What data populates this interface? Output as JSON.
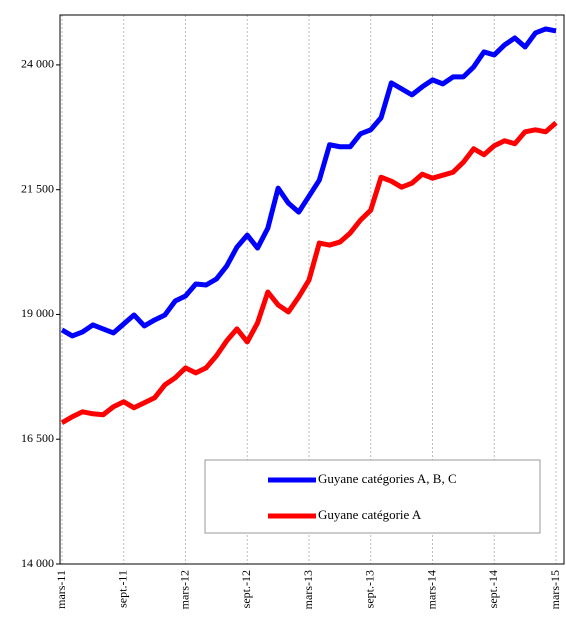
{
  "chart_data": {
    "type": "line",
    "categories": [
      "mars-11",
      null,
      null,
      null,
      null,
      null,
      "sept.-11",
      null,
      null,
      null,
      null,
      null,
      "mars-12",
      null,
      null,
      null,
      null,
      null,
      "sept.-12",
      null,
      null,
      null,
      null,
      null,
      "mars-13",
      null,
      null,
      null,
      null,
      null,
      "sept.-13",
      null,
      null,
      null,
      null,
      null,
      "mars-14",
      null,
      null,
      null,
      null,
      null,
      "sept.-14",
      null,
      null,
      null,
      null,
      null,
      "mars-15"
    ],
    "series": [
      {
        "name": "Guyane catégories A, B, C",
        "color": "#0000ff",
        "values": [
          18690,
          18570,
          18650,
          18790,
          18710,
          18630,
          18810,
          18990,
          18770,
          18890,
          18990,
          19270,
          19370,
          19610,
          19590,
          19710,
          19970,
          20350,
          20590,
          20330,
          20730,
          21530,
          21230,
          21050,
          21370,
          21690,
          22400,
          22360,
          22360,
          22620,
          22700,
          22940,
          23640,
          23520,
          23400,
          23560,
          23700,
          23620,
          23760,
          23760,
          23960,
          24260,
          24200,
          24400,
          24540,
          24360,
          24640,
          24720,
          24680
        ]
      },
      {
        "name": "Guyane catégorie A",
        "color": "#ff0000",
        "values": [
          16830,
          16950,
          17050,
          17010,
          16990,
          17150,
          17250,
          17130,
          17230,
          17330,
          17590,
          17730,
          17930,
          17830,
          17930,
          18170,
          18470,
          18710,
          18450,
          18830,
          19450,
          19190,
          19050,
          19350,
          19690,
          20430,
          20390,
          20450,
          20630,
          20890,
          21090,
          21750,
          21670,
          21550,
          21630,
          21810,
          21730,
          21790,
          21850,
          22050,
          22320,
          22200,
          22380,
          22480,
          22420,
          22660,
          22700,
          22660,
          22840
        ]
      }
    ],
    "ylim": [
      14000,
      25000
    ],
    "yticks": [
      {
        "value": 14000,
        "label": "14 000"
      },
      {
        "value": 16500,
        "label": "16 500"
      },
      {
        "value": 19000,
        "label": "19 000"
      },
      {
        "value": 21500,
        "label": "21 500"
      },
      {
        "value": 24000,
        "label": "24 000"
      }
    ],
    "grid": true
  }
}
